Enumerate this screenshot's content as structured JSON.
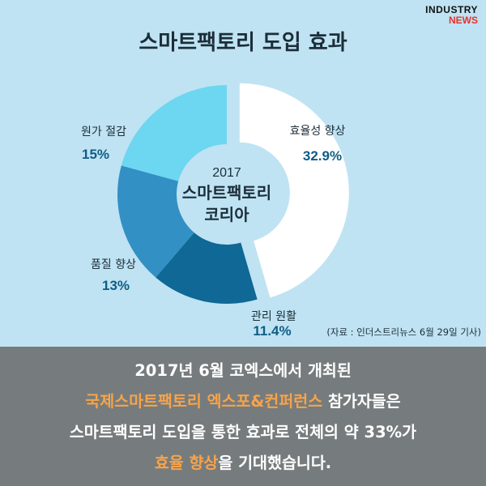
{
  "logo": {
    "line1": "INDUSTRY",
    "line2": "NEWS"
  },
  "title": "스마트팩토리 도입 효과",
  "center": {
    "year": "2017",
    "line1": "스마트팩토리",
    "line2": "코리아"
  },
  "chart_data": {
    "type": "pie",
    "style": "donut, largest slice exploded",
    "categories": [
      "효율성 향상",
      "관리 원활",
      "품질 향상",
      "원가 절감"
    ],
    "values": [
      32.9,
      11.4,
      13,
      15
    ],
    "value_labels": [
      "32.9%",
      "11.4%",
      "13%",
      "15%"
    ],
    "colors": [
      "#ffffff",
      "#0f6895",
      "#3390c4",
      "#6dd6f0"
    ],
    "legend": "none (labels placed next to slices)"
  },
  "source": "(자료 : 인더스트리뉴스 6월 29일 기사)",
  "summary": {
    "line1": "2017년 6월 코엑스에서 개최된",
    "line2_highlight": "국제스마트팩토리 엑스포&컨퍼런스",
    "line2_rest": " 참가자들은",
    "line3": "스마트팩토리 도입을 통한 효과로 전체의 약 33%가",
    "line4_highlight": "효율 향상",
    "line4_rest": "을 기대했습니다.",
    "highlight_color": "#f7a34a"
  }
}
